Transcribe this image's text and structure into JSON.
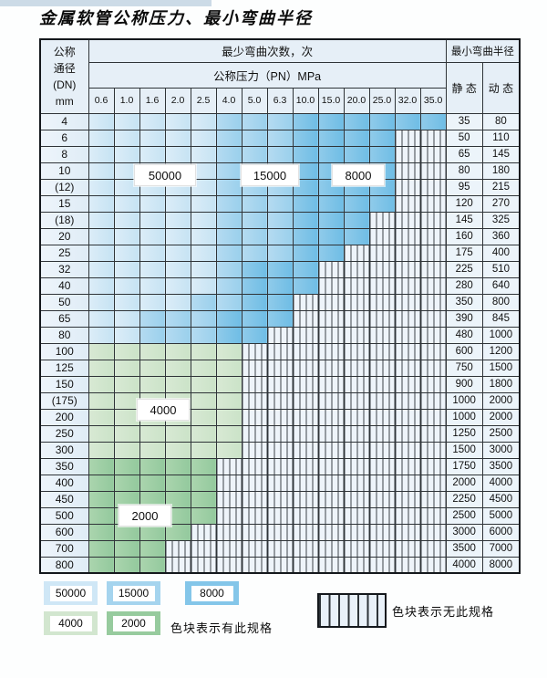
{
  "title": "金属软管公称压力、最小弯曲半径",
  "table": {
    "header": {
      "dn_lines": [
        "公称",
        "通径",
        "(DN)",
        "mm"
      ],
      "bend_cycles_label": "最少弯曲次数，次",
      "pressure_label": "公称压力（PN）MPa",
      "bend_radius_label": "最小弯曲半径",
      "static_label": "静 态",
      "dynamic_label": "动 态",
      "pressures": [
        "0.6",
        "1.0",
        "1.6",
        "2.0",
        "2.5",
        "4.0",
        "5.0",
        "6.3",
        "10.0",
        "15.0",
        "20.0",
        "25.0",
        "32.0",
        "35.0"
      ]
    },
    "rows": [
      {
        "dn": "4",
        "static": "35",
        "dynamic": "80",
        "bands": [
          {
            "band": "c50",
            "cols": 5
          },
          {
            "band": "c15",
            "cols": 3
          },
          {
            "band": "c8",
            "cols": 6
          }
        ]
      },
      {
        "dn": "6",
        "static": "50",
        "dynamic": "110",
        "bands": [
          {
            "band": "c50",
            "cols": 5
          },
          {
            "band": "c15",
            "cols": 3
          },
          {
            "band": "c8",
            "cols": 4
          }
        ]
      },
      {
        "dn": "8",
        "static": "65",
        "dynamic": "145",
        "bands": [
          {
            "band": "c50",
            "cols": 5
          },
          {
            "band": "c15",
            "cols": 3
          },
          {
            "band": "c8",
            "cols": 4
          }
        ]
      },
      {
        "dn": "10",
        "static": "80",
        "dynamic": "180",
        "bands": [
          {
            "band": "c50",
            "cols": 5
          },
          {
            "band": "c15",
            "cols": 3
          },
          {
            "band": "c8",
            "cols": 4
          }
        ]
      },
      {
        "dn": "(12)",
        "static": "95",
        "dynamic": "215",
        "bands": [
          {
            "band": "c50",
            "cols": 5
          },
          {
            "band": "c15",
            "cols": 3
          },
          {
            "band": "c8",
            "cols": 4
          }
        ]
      },
      {
        "dn": "15",
        "static": "120",
        "dynamic": "270",
        "bands": [
          {
            "band": "c50",
            "cols": 5
          },
          {
            "band": "c15",
            "cols": 3
          },
          {
            "band": "c8",
            "cols": 4
          }
        ]
      },
      {
        "dn": "(18)",
        "static": "145",
        "dynamic": "325",
        "bands": [
          {
            "band": "c50",
            "cols": 5
          },
          {
            "band": "c15",
            "cols": 3
          },
          {
            "band": "c8",
            "cols": 3
          }
        ]
      },
      {
        "dn": "20",
        "static": "160",
        "dynamic": "360",
        "bands": [
          {
            "band": "c50",
            "cols": 5
          },
          {
            "band": "c15",
            "cols": 3
          },
          {
            "band": "c8",
            "cols": 3
          }
        ]
      },
      {
        "dn": "25",
        "static": "175",
        "dynamic": "400",
        "bands": [
          {
            "band": "c50",
            "cols": 5
          },
          {
            "band": "c15",
            "cols": 3
          },
          {
            "band": "c8",
            "cols": 2
          }
        ]
      },
      {
        "dn": "32",
        "static": "225",
        "dynamic": "510",
        "bands": [
          {
            "band": "c50",
            "cols": 5
          },
          {
            "band": "c15",
            "cols": 1
          },
          {
            "band": "c8",
            "cols": 3
          }
        ]
      },
      {
        "dn": "40",
        "static": "280",
        "dynamic": "640",
        "bands": [
          {
            "band": "c50",
            "cols": 5
          },
          {
            "band": "c15",
            "cols": 1
          },
          {
            "band": "c8",
            "cols": 3
          }
        ]
      },
      {
        "dn": "50",
        "static": "350",
        "dynamic": "800",
        "bands": [
          {
            "band": "c50",
            "cols": 4
          },
          {
            "band": "c15",
            "cols": 2
          },
          {
            "band": "c8",
            "cols": 2
          }
        ]
      },
      {
        "dn": "65",
        "static": "390",
        "dynamic": "845",
        "bands": [
          {
            "band": "c50",
            "cols": 2
          },
          {
            "band": "c15",
            "cols": 3
          },
          {
            "band": "c8",
            "cols": 3
          }
        ]
      },
      {
        "dn": "80",
        "static": "480",
        "dynamic": "1000",
        "bands": [
          {
            "band": "c50",
            "cols": 2
          },
          {
            "band": "c15",
            "cols": 3
          },
          {
            "band": "c8",
            "cols": 2
          }
        ]
      },
      {
        "dn": "100",
        "static": "600",
        "dynamic": "1200",
        "bands": [
          {
            "band": "c4",
            "cols": 6
          }
        ]
      },
      {
        "dn": "125",
        "static": "750",
        "dynamic": "1500",
        "bands": [
          {
            "band": "c4",
            "cols": 6
          }
        ]
      },
      {
        "dn": "150",
        "static": "900",
        "dynamic": "1800",
        "bands": [
          {
            "band": "c4",
            "cols": 6
          }
        ]
      },
      {
        "dn": "(175)",
        "static": "1000",
        "dynamic": "2000",
        "bands": [
          {
            "band": "c4",
            "cols": 6
          }
        ]
      },
      {
        "dn": "200",
        "static": "1000",
        "dynamic": "2000",
        "bands": [
          {
            "band": "c4",
            "cols": 6
          }
        ]
      },
      {
        "dn": "250",
        "static": "1250",
        "dynamic": "2500",
        "bands": [
          {
            "band": "c4",
            "cols": 6
          }
        ]
      },
      {
        "dn": "300",
        "static": "1500",
        "dynamic": "3000",
        "bands": [
          {
            "band": "c4",
            "cols": 6
          }
        ]
      },
      {
        "dn": "350",
        "static": "1750",
        "dynamic": "3500",
        "bands": [
          {
            "band": "c2",
            "cols": 5
          }
        ]
      },
      {
        "dn": "400",
        "static": "2000",
        "dynamic": "4000",
        "bands": [
          {
            "band": "c2",
            "cols": 5
          }
        ]
      },
      {
        "dn": "450",
        "static": "2250",
        "dynamic": "4500",
        "bands": [
          {
            "band": "c2",
            "cols": 5
          }
        ]
      },
      {
        "dn": "500",
        "static": "2500",
        "dynamic": "5000",
        "bands": [
          {
            "band": "c2",
            "cols": 5
          }
        ]
      },
      {
        "dn": "600",
        "static": "3000",
        "dynamic": "6000",
        "bands": [
          {
            "band": "c2",
            "cols": 4
          }
        ]
      },
      {
        "dn": "700",
        "static": "3500",
        "dynamic": "7000",
        "bands": [
          {
            "band": "c2",
            "cols": 3
          }
        ]
      },
      {
        "dn": "800",
        "static": "4000",
        "dynamic": "8000",
        "bands": [
          {
            "band": "c2",
            "cols": 3
          }
        ]
      }
    ],
    "num_pressure_cols": 14
  },
  "overlay_labels": [
    {
      "key": "b50000",
      "label": "50000"
    },
    {
      "key": "b15000",
      "label": "15000"
    },
    {
      "key": "b8000",
      "label": "8000"
    },
    {
      "key": "b4000",
      "label": "4000"
    },
    {
      "key": "b2000",
      "label": "2000"
    }
  ],
  "legend": {
    "swatches": [
      {
        "label": "50000",
        "band": "c50",
        "hex": "#cfe7f6"
      },
      {
        "label": "15000",
        "band": "c15",
        "hex": "#a5d4ee"
      },
      {
        "label": "8000",
        "band": "c8",
        "hex": "#84c6e9"
      },
      {
        "label": "4000",
        "band": "c4",
        "hex": "#d2e6cf"
      },
      {
        "label": "2000",
        "band": "c2",
        "hex": "#97cb9e"
      }
    ],
    "has_spec_text": "色块表示有此规格",
    "no_spec_text": "色块表示无此规格"
  },
  "colors": {
    "c50": [
      "#dcedf8",
      "#c6e3f3"
    ],
    "c15": [
      "#b5dbf1",
      "#9ad0ec"
    ],
    "c8": [
      "#90cbea",
      "#6fbde5"
    ],
    "c4": [
      "#d8e9d4",
      "#cbe3c8"
    ],
    "c2": [
      "#abd5ae",
      "#93c99d"
    ],
    "stripe_line": "#3c4248",
    "stripe_bg": "#eef4fa",
    "grid": "#2f3438",
    "header_bg": "#e6eff7",
    "label_bg": "#ecf4fa"
  }
}
